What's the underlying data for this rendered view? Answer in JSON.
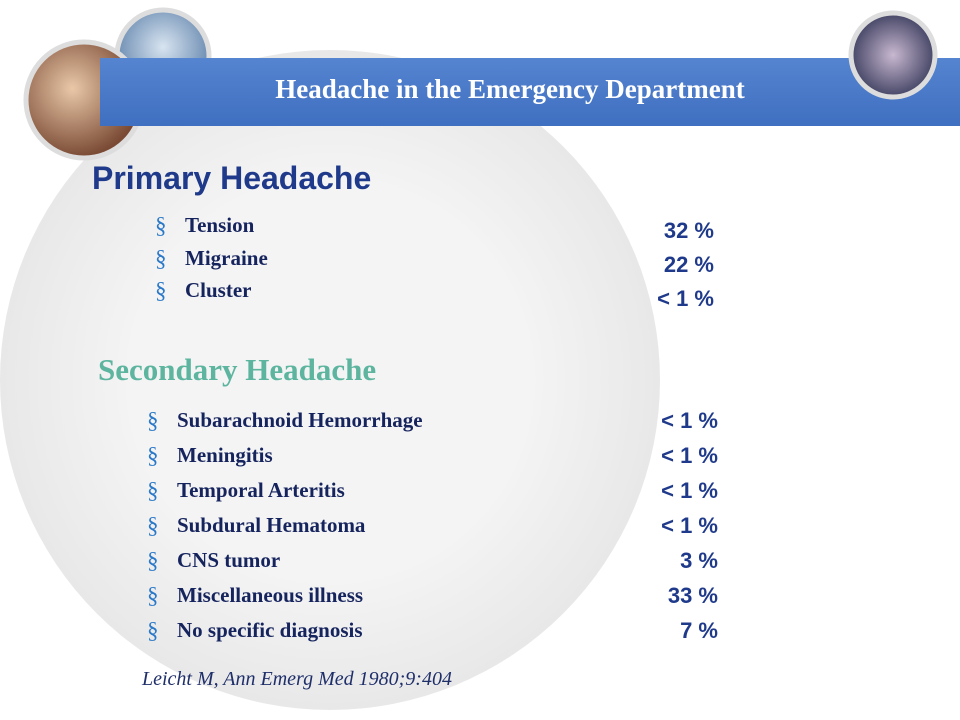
{
  "header": {
    "title": "Headache in the Emergency Department"
  },
  "primary": {
    "title": "Primary Headache",
    "items": [
      {
        "label": "Tension",
        "value": "32 %"
      },
      {
        "label": "Migraine",
        "value": "22 %"
      },
      {
        "label": "Cluster",
        "value": "< 1 %"
      }
    ]
  },
  "secondary": {
    "title": "Secondary Headache",
    "items": [
      {
        "label": "Subarachnoid Hemorrhage",
        "value": "< 1 %"
      },
      {
        "label": "Meningitis",
        "value": "< 1 %"
      },
      {
        "label": "Temporal Arteritis",
        "value": "< 1 %"
      },
      {
        "label": "Subdural Hematoma",
        "value": "< 1 %"
      },
      {
        "label": "CNS tumor",
        "value": "3 %"
      },
      {
        "label": "Miscellaneous illness",
        "value": "33 %"
      },
      {
        "label": "No specific diagnosis",
        "value": "7 %"
      }
    ]
  },
  "citation": "Leicht M, Ann Emerg Med 1980;9:404"
}
